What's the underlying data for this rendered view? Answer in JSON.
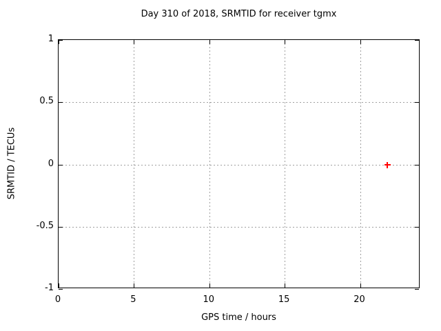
{
  "chart_data": {
    "type": "scatter",
    "title": "Day 310 of 2018, SRMTID for receiver tgmx",
    "xlabel": "GPS time / hours",
    "ylabel": "SRMTID / TECUs",
    "xlim": [
      0,
      24
    ],
    "ylim": [
      -1,
      1
    ],
    "xticks": [
      0,
      5,
      10,
      15,
      20
    ],
    "yticks": [
      -1,
      -0.5,
      0,
      0.5,
      1
    ],
    "grid": true,
    "legend": "none",
    "series": [
      {
        "name": "SRMTID",
        "marker": "plus",
        "color": "#ff0000",
        "points": [
          {
            "x": 21.8,
            "y": 0.0
          }
        ]
      }
    ]
  },
  "colors": {
    "background": "#ffffff",
    "axis_border": "#000000",
    "grid": "#9e9e9e",
    "text": "#000000"
  }
}
